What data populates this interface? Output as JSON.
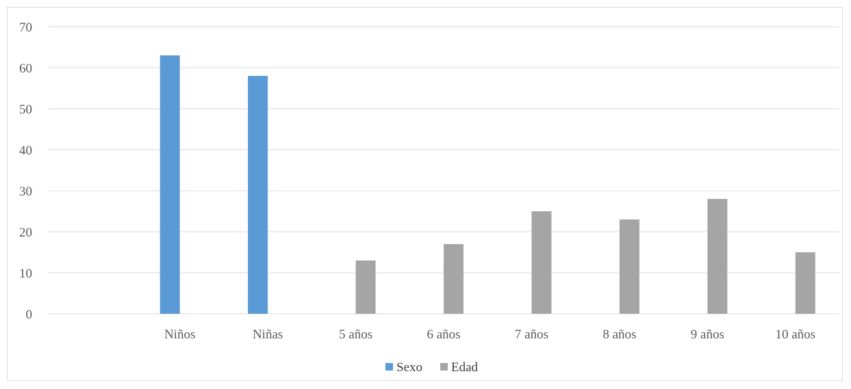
{
  "chart_data": {
    "type": "bar",
    "categories": [
      "",
      "Niños",
      "Niñas",
      "5 años",
      "6 años",
      "7 años",
      "8 años",
      "9 años",
      "10 años"
    ],
    "series": [
      {
        "name": "Sexo",
        "color": "#5b9bd5",
        "values": [
          null,
          63,
          58,
          null,
          null,
          null,
          null,
          null,
          null
        ]
      },
      {
        "name": "Edad",
        "color": "#a5a5a5",
        "values": [
          null,
          null,
          null,
          13,
          17,
          25,
          23,
          28,
          15
        ]
      }
    ],
    "title": "",
    "xlabel": "",
    "ylabel": "",
    "ylim": [
      0,
      70
    ],
    "yticks": [
      "0",
      "10",
      "20",
      "30",
      "40",
      "50",
      "60",
      "70"
    ],
    "grid": true,
    "legend_position": "bottom",
    "gridline_color": "#d9d9d9"
  }
}
